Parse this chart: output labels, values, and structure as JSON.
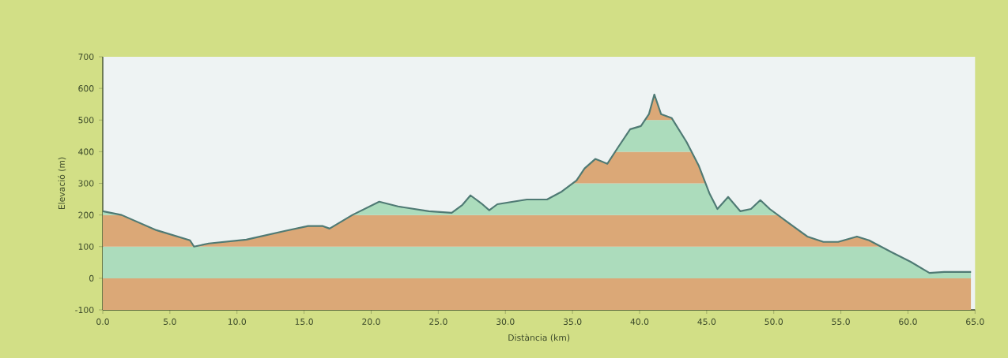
{
  "chart_data": {
    "type": "line",
    "xlabel": "Distància (km)",
    "ylabel": "Elevació (m)",
    "x": [
      0,
      1.4,
      4.0,
      6.5,
      6.8,
      7.9,
      10.7,
      13.6,
      15.3,
      16.4,
      16.9,
      18.6,
      20.6,
      22.0,
      24.3,
      26.0,
      26.8,
      27.4,
      28.2,
      28.8,
      29.4,
      31.6,
      33.1,
      34.2,
      35.3,
      35.9,
      36.7,
      37.6,
      38.4,
      39.3,
      40.1,
      40.7,
      41.1,
      41.6,
      42.4,
      43.5,
      44.4,
      45.2,
      45.8,
      46.6,
      47.5,
      48.3,
      49.0,
      49.7,
      51.1,
      52.5,
      53.7,
      54.8,
      56.2,
      57.1,
      58.8,
      60.2,
      61.6,
      62.7,
      64.7
    ],
    "series": [
      {
        "color": "#4f7a74",
        "values": [
          212,
          200,
          152,
          120,
          100,
          110,
          122,
          150,
          165,
          165,
          157,
          200,
          242,
          227,
          212,
          207,
          232,
          262,
          237,
          215,
          234,
          249,
          249,
          274,
          309,
          347,
          377,
          362,
          414,
          471,
          481,
          519,
          581,
          519,
          506,
          431,
          357,
          269,
          219,
          257,
          212,
          219,
          247,
          219,
          175,
          132,
          115,
          115,
          132,
          120,
          82,
          52,
          17,
          20,
          20
        ]
      }
    ],
    "xlim": [
      0,
      65
    ],
    "ylim": [
      -100,
      700
    ],
    "xticks": [
      {
        "value": 0,
        "label": "0.0"
      },
      {
        "value": 5,
        "label": "5.0"
      },
      {
        "value": 10,
        "label": "10.0"
      },
      {
        "value": 15,
        "label": "15.0"
      },
      {
        "value": 20,
        "label": "20.0"
      },
      {
        "value": 25,
        "label": "25.0"
      },
      {
        "value": 30,
        "label": "30.0"
      },
      {
        "value": 35,
        "label": "35.0"
      },
      {
        "value": 40,
        "label": "40.0"
      },
      {
        "value": 45,
        "label": "45.0"
      },
      {
        "value": 50,
        "label": "50.0"
      },
      {
        "value": 55,
        "label": "55.0"
      },
      {
        "value": 60,
        "label": "60.0"
      },
      {
        "value": 65,
        "label": "65.0"
      }
    ],
    "yticks": [
      -100,
      0,
      100,
      200,
      300,
      400,
      500,
      600,
      700
    ],
    "bands": [
      {
        "axis": "y",
        "from": -100,
        "to": 0,
        "color": "#dba877"
      },
      {
        "axis": "y",
        "from": 0,
        "to": 100,
        "color": "#acdcbc"
      },
      {
        "axis": "y",
        "from": 100,
        "to": 200,
        "color": "#dba877"
      },
      {
        "axis": "y",
        "from": 200,
        "to": 300,
        "color": "#acdcbc"
      },
      {
        "axis": "y",
        "from": 300,
        "to": 400,
        "color": "#dba877"
      },
      {
        "axis": "y",
        "from": 400,
        "to": 500,
        "color": "#acdcbc"
      },
      {
        "axis": "y",
        "from": 500,
        "to": 600,
        "color": "#dba877"
      }
    ]
  }
}
